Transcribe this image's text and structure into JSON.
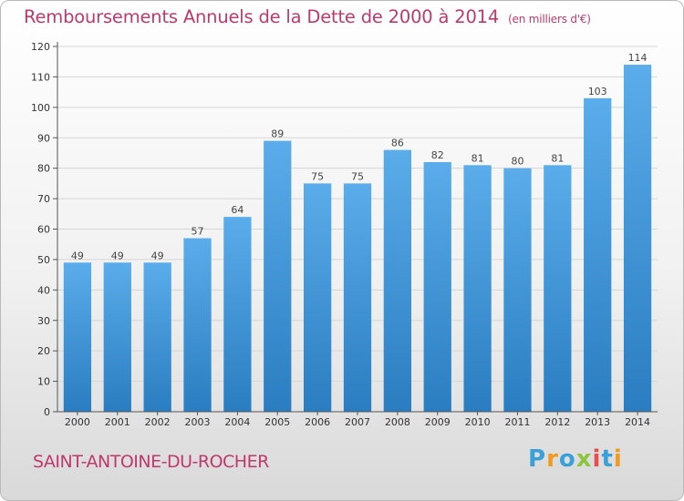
{
  "header": {
    "title": "Remboursements Annuels de la Dette de 2000 à 2014",
    "subtitle": "(en milliers d'€)"
  },
  "footer": {
    "commune": "SAINT-ANTOINE-DU-ROCHER",
    "logo_text": "Proxiti"
  },
  "colors": {
    "accent": "#c0396c",
    "bar_top": "#5aacea",
    "bar_bottom": "#2a7dc0"
  },
  "chart_data": {
    "type": "bar",
    "categories": [
      "2000",
      "2001",
      "2002",
      "2003",
      "2004",
      "2005",
      "2006",
      "2007",
      "2008",
      "2009",
      "2010",
      "2011",
      "2012",
      "2013",
      "2014"
    ],
    "values": [
      49,
      49,
      49,
      57,
      64,
      89,
      75,
      75,
      86,
      82,
      81,
      80,
      81,
      103,
      114
    ],
    "title": "Remboursements Annuels de la Dette de 2000 à 2014",
    "subtitle": "(en milliers d'€)",
    "xlabel": "",
    "ylabel": "",
    "ylim": [
      0,
      120
    ],
    "yticks": [
      0,
      10,
      20,
      30,
      40,
      50,
      60,
      70,
      80,
      90,
      100,
      110,
      120
    ],
    "grid": true,
    "legend": "none",
    "data_labels": true
  }
}
